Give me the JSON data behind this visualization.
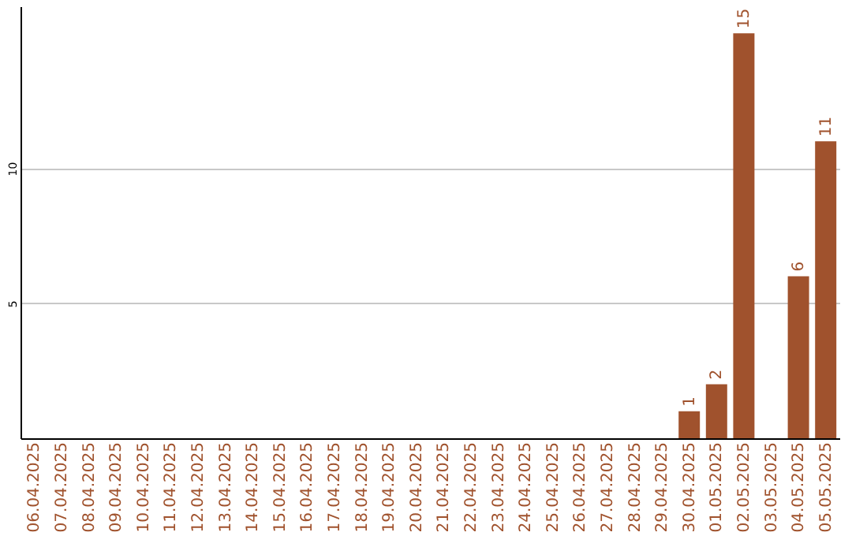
{
  "chart_data": {
    "type": "bar",
    "categories": [
      "06.04.2025",
      "07.04.2025",
      "08.04.2025",
      "09.04.2025",
      "10.04.2025",
      "11.04.2025",
      "12.04.2025",
      "13.04.2025",
      "14.04.2025",
      "15.04.2025",
      "16.04.2025",
      "17.04.2025",
      "18.04.2025",
      "19.04.2025",
      "20.04.2025",
      "21.04.2025",
      "22.04.2025",
      "23.04.2025",
      "24.04.2025",
      "25.04.2025",
      "26.04.2025",
      "27.04.2025",
      "28.04.2025",
      "29.04.2025",
      "30.04.2025",
      "01.05.2025",
      "02.05.2025",
      "03.05.2025",
      "04.05.2025",
      "05.05.2025"
    ],
    "values": [
      0,
      0,
      0,
      0,
      0,
      0,
      0,
      0,
      0,
      0,
      0,
      0,
      0,
      0,
      0,
      0,
      0,
      0,
      0,
      0,
      0,
      0,
      0,
      0,
      1,
      2,
      15,
      0,
      6,
      11
    ],
    "value_labels": [
      null,
      null,
      null,
      null,
      null,
      null,
      null,
      null,
      null,
      null,
      null,
      null,
      null,
      null,
      null,
      null,
      null,
      null,
      null,
      null,
      null,
      null,
      null,
      null,
      "1",
      "2",
      "15",
      null,
      "6",
      "11"
    ],
    "color": "#a0522d",
    "ylim": [
      0,
      16
    ],
    "yticks": [
      5,
      10
    ],
    "grid": "y"
  }
}
